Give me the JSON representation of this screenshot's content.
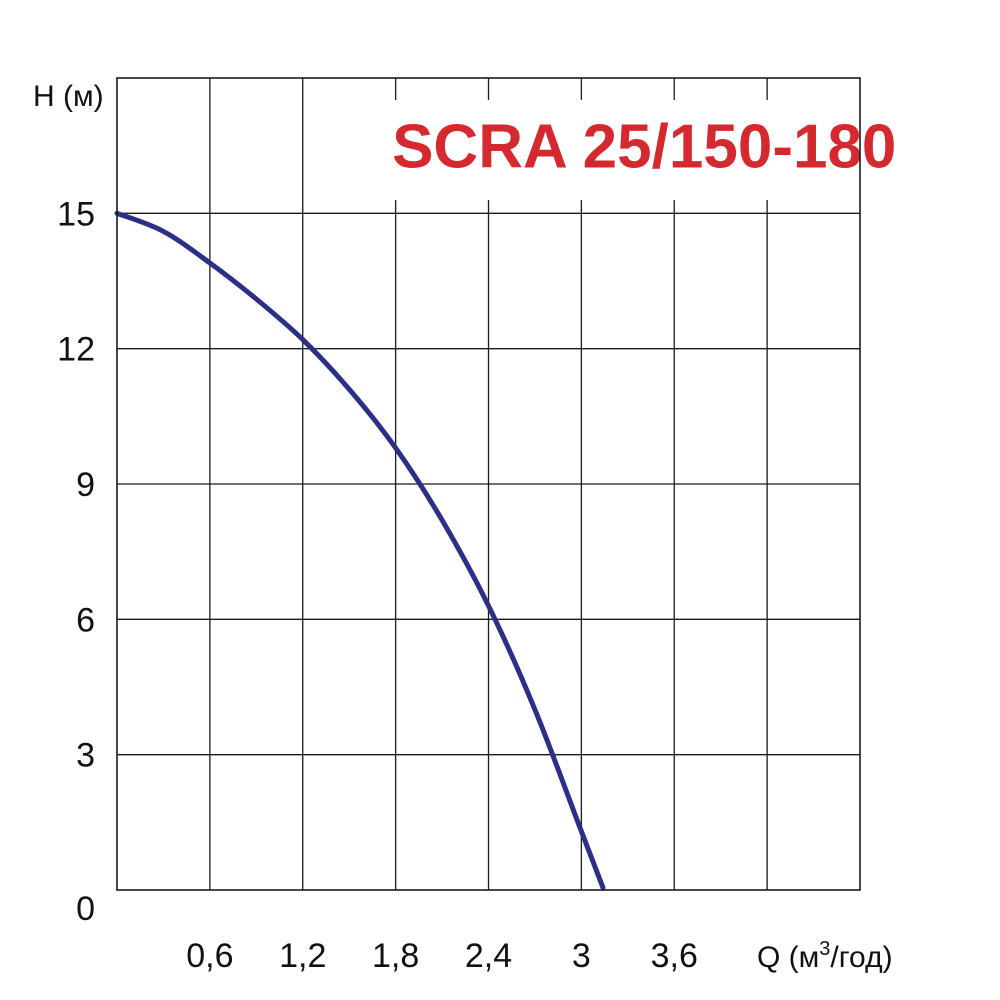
{
  "chart_data": {
    "type": "line",
    "title": "SCRA 25/150-180",
    "ylabel": "H (м)",
    "xlabel_main": "Q (м",
    "xlabel_sup": "3",
    "xlabel_tail": "/год)",
    "xlim": [
      0,
      4.8
    ],
    "ylim": [
      0,
      18
    ],
    "x_ticks": [
      {
        "value": 0.6,
        "label": "0,6"
      },
      {
        "value": 1.2,
        "label": "1,2"
      },
      {
        "value": 1.8,
        "label": "1,8"
      },
      {
        "value": 2.4,
        "label": "2,4"
      },
      {
        "value": 3.0,
        "label": "3"
      },
      {
        "value": 3.6,
        "label": "3,6"
      }
    ],
    "x_grid": [
      0.6,
      1.2,
      1.8,
      2.4,
      3.0,
      3.6,
      4.2
    ],
    "y_ticks": [
      {
        "value": 0,
        "label": "0"
      },
      {
        "value": 3,
        "label": "3"
      },
      {
        "value": 6,
        "label": "6"
      },
      {
        "value": 9,
        "label": "9"
      },
      {
        "value": 12,
        "label": "12"
      },
      {
        "value": 15,
        "label": "15"
      }
    ],
    "grid": true,
    "series": [
      {
        "color": "#2b2f86",
        "points": [
          [
            0,
            15.0
          ],
          [
            0.3,
            14.6
          ],
          [
            0.6,
            13.9
          ],
          [
            0.9,
            13.1
          ],
          [
            1.2,
            12.2
          ],
          [
            1.5,
            11.1
          ],
          [
            1.8,
            9.8
          ],
          [
            2.1,
            8.2
          ],
          [
            2.4,
            6.3
          ],
          [
            2.7,
            4.0
          ],
          [
            3.0,
            1.3
          ],
          [
            3.14,
            0.05
          ]
        ]
      }
    ]
  },
  "colors": {
    "title": "#d42a2f",
    "grid": "#1a1a1a",
    "curve": "#2b2f86"
  }
}
